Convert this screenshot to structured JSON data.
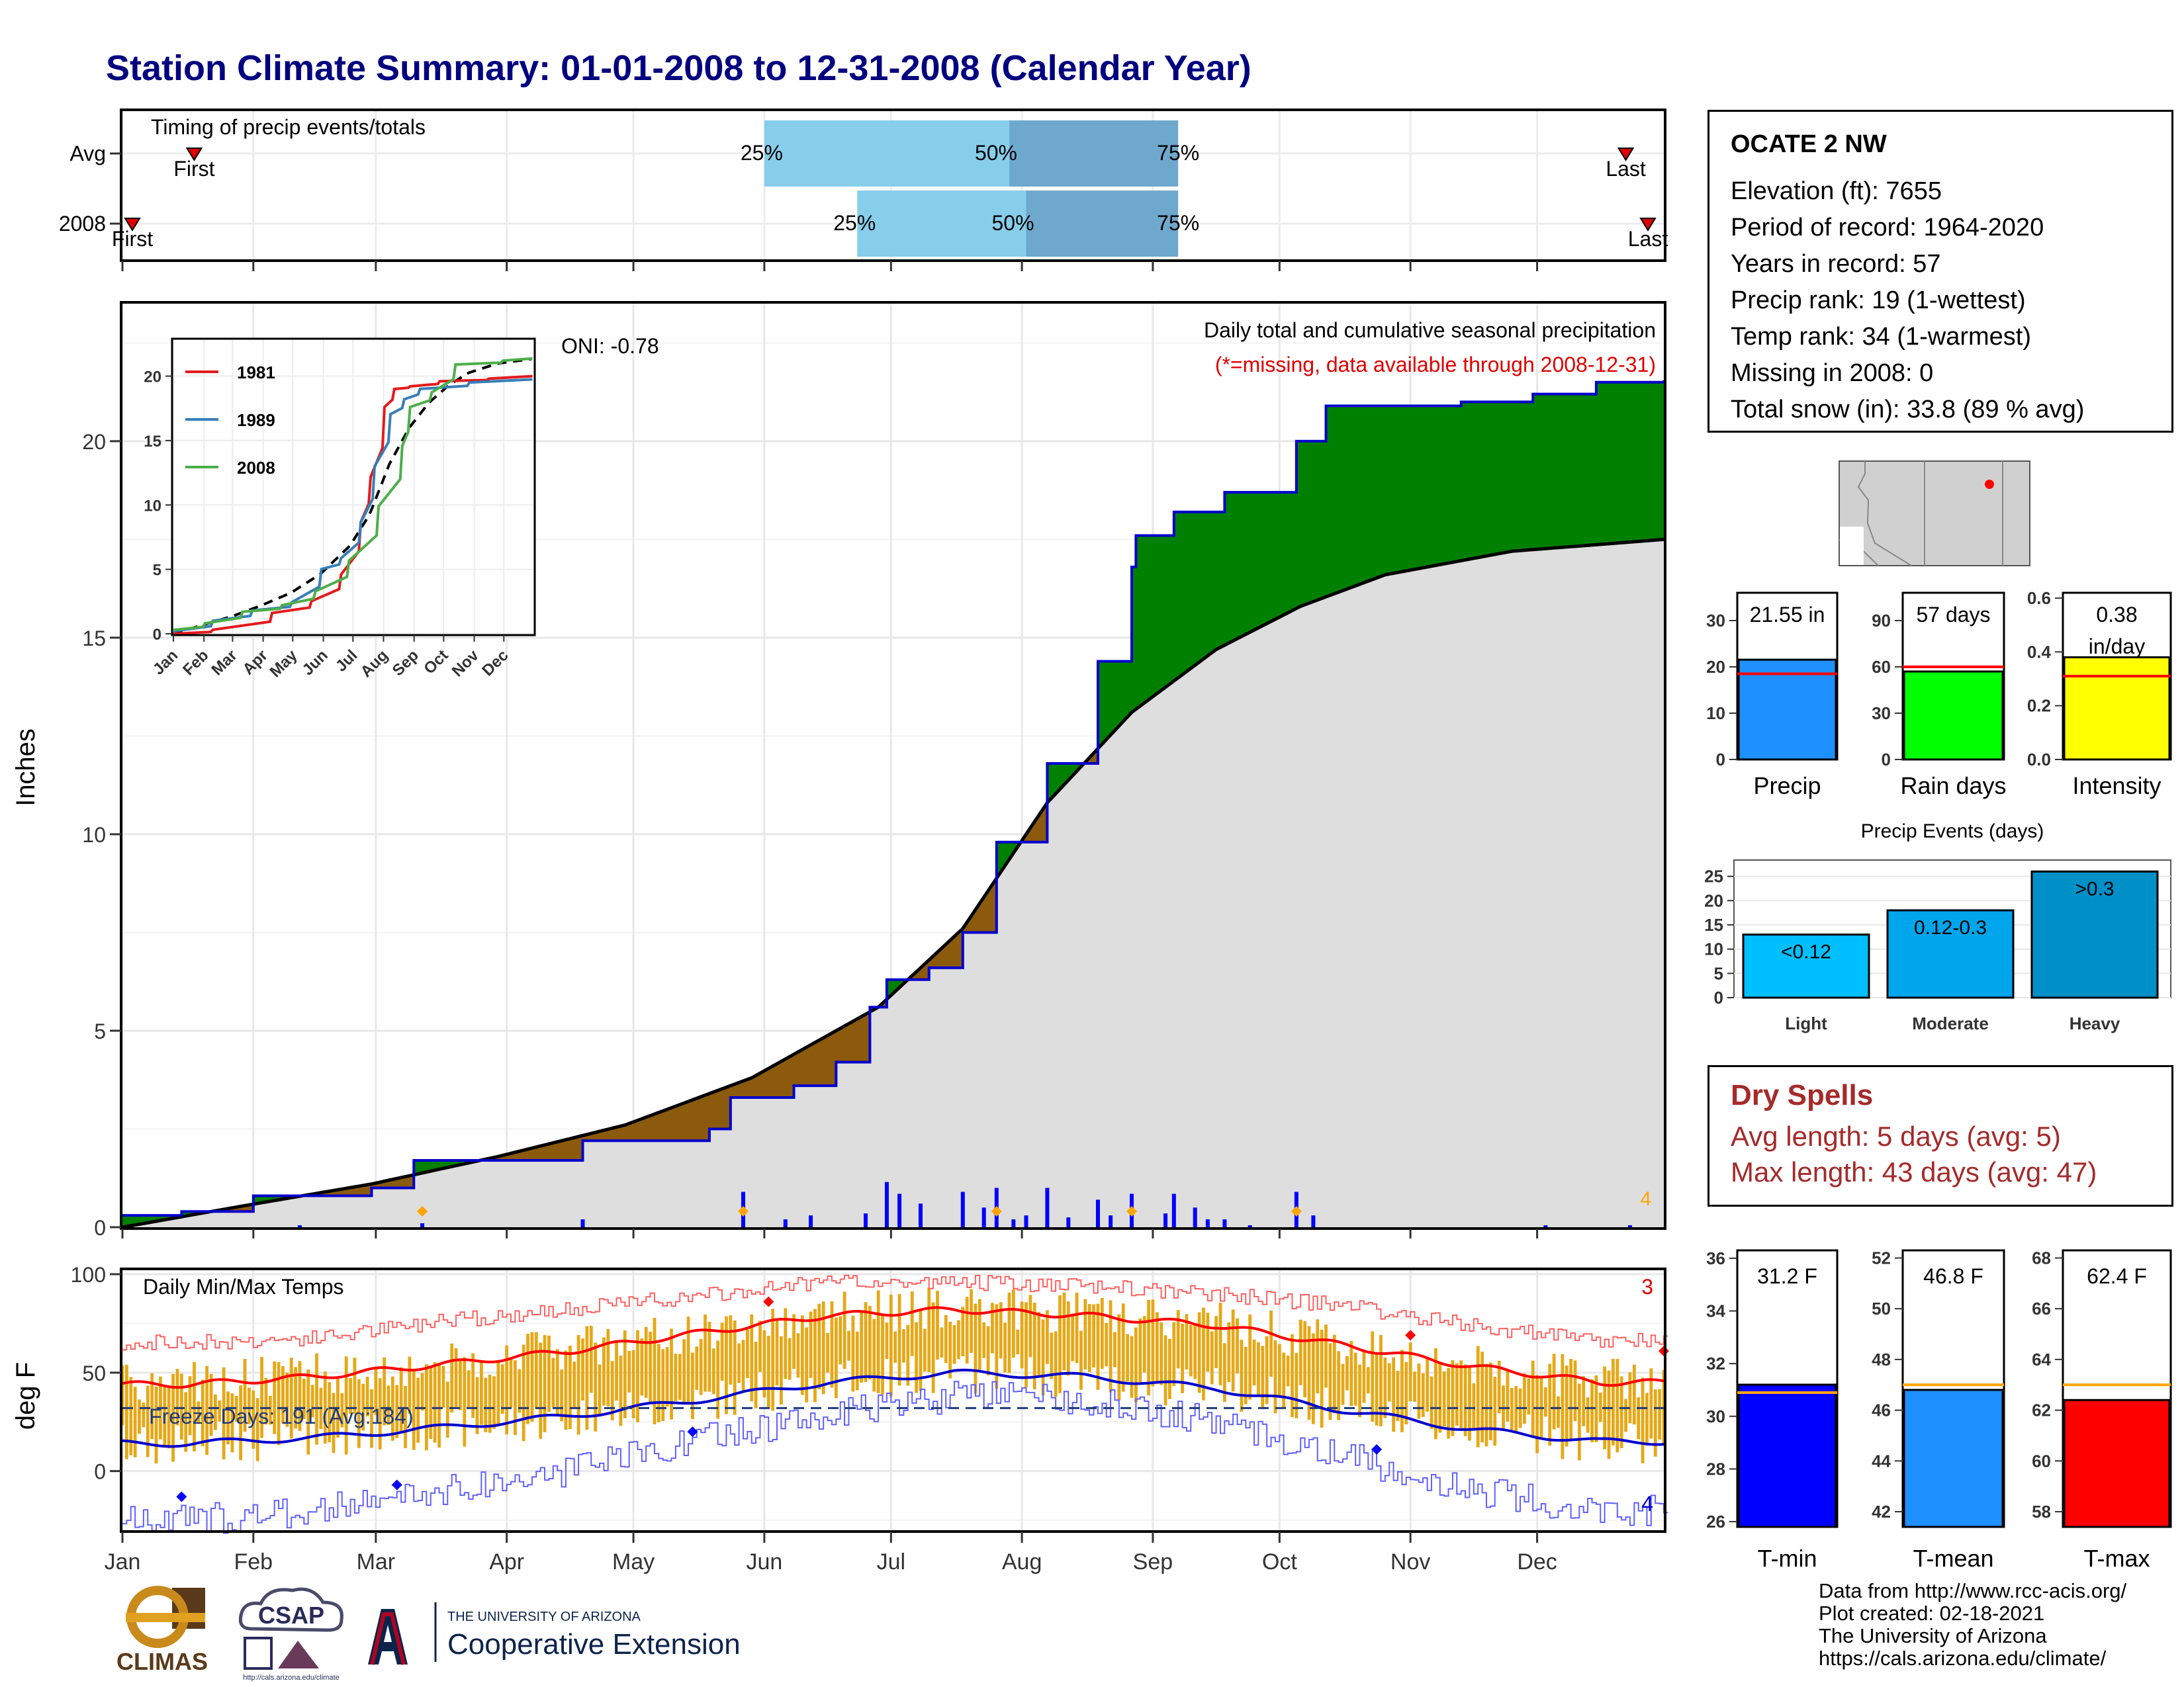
{
  "page": {
    "title": "Station Climate Summary: 01-01-2008 to 12-31-2008 (Calendar Year)"
  },
  "timing": {
    "label": "Timing of precip events/totals",
    "rows": [
      {
        "name": "Avg",
        "first_day": 18,
        "p25_day": 153,
        "p50_day": 211,
        "p75_day": 251,
        "last_day": 357
      },
      {
        "name": "2008",
        "first_day": 3,
        "p25_day": 175,
        "p50_day": 215,
        "p75_day": 251,
        "last_day": 366
      }
    ],
    "first_label": "First",
    "last_label": "Last",
    "pct_labels": [
      "25%",
      "50%",
      "75%"
    ],
    "colors": {
      "light": "#87ceeb",
      "dark": "#6fa8cd",
      "marker": "#e00000"
    }
  },
  "station": {
    "name": "OCATE 2 NW",
    "lines": [
      "Elevation (ft): 7655",
      "Period of record: 1964-2020",
      "Years in record: 57",
      "Precip rank: 19 (1-wettest)",
      "Temp rank: 34 (1-warmest)",
      "Missing in 2008: 0",
      "Total snow (in): 33.8 (89 % avg)"
    ],
    "map_location": "northeast New Mexico"
  },
  "precip_chart": {
    "title": "Daily total and cumulative seasonal precipitation",
    "missing_note": "(*=missing, data available through 2008-12-31)",
    "oni_label": "ONI: -0.78",
    "ylabel": "Inches",
    "yticks": [
      "0",
      "5",
      "10",
      "15",
      "20"
    ],
    "corner_count": "4",
    "colors": {
      "above": "#008000",
      "below": "#8b5a0c",
      "avg_area": "#dedede",
      "obs_line": "#0000cd",
      "bars": "#0000ff",
      "marker": "#ffa500"
    }
  },
  "inset": {
    "yticks": [
      "0",
      "5",
      "10",
      "15",
      "20"
    ],
    "months": [
      "Jan",
      "Feb",
      "Mar",
      "Apr",
      "May",
      "Jun",
      "Jul",
      "Aug",
      "Sep",
      "Oct",
      "Nov",
      "Dec"
    ],
    "legend": [
      {
        "name": "1981",
        "color": "#e41a1c"
      },
      {
        "name": "1989",
        "color": "#377eb8"
      },
      {
        "name": "2008",
        "color": "#4daf4a"
      }
    ]
  },
  "temp_chart": {
    "title": "Daily Min/Max Temps",
    "ylabel": "deg F",
    "yticks": [
      "0",
      "50",
      "100"
    ],
    "freeze_label": "Freeze Days: 191 (Avg:184)",
    "count_max": "3",
    "count_min": "4",
    "colors": {
      "bars": "#e6a817",
      "max_line": "#ff0000",
      "min_line": "#0000cd"
    }
  },
  "months": [
    "Jan",
    "Feb",
    "Mar",
    "Apr",
    "May",
    "Jun",
    "Jul",
    "Aug",
    "Sep",
    "Oct",
    "Nov",
    "Dec"
  ],
  "summary_bars": [
    {
      "label": "Precip",
      "value_label": "21.55 in",
      "value": 21.55,
      "avg": 18.5,
      "ymax": 36,
      "ticks": [
        0,
        10,
        20,
        30
      ],
      "color": "#1e90ff"
    },
    {
      "label": "Rain days",
      "value_label": "57 days",
      "value": 57,
      "avg": 60,
      "ymax": 108,
      "ticks": [
        0,
        30,
        60,
        90
      ],
      "color": "#00ff00"
    },
    {
      "label": "Intensity",
      "value_label": "0.38 in/day",
      "value": 0.38,
      "avg": 0.31,
      "ymax": 0.62,
      "ticks": [
        0.0,
        0.2,
        0.4,
        0.6
      ],
      "color": "#ffff00"
    }
  ],
  "precip_events": {
    "title": "Precip Events (days)",
    "categories": [
      "Light",
      "Moderate",
      "Heavy"
    ],
    "bar_labels": [
      "<0.12",
      "0.12-0.3",
      ">0.3"
    ],
    "values": [
      13,
      18,
      26
    ],
    "ylim": [
      0,
      27
    ],
    "yticks": [
      0,
      5,
      10,
      15,
      20,
      25
    ],
    "colors": [
      "#00bfff",
      "#00a6ec",
      "#0090c8"
    ]
  },
  "dry_spells": {
    "title": "Dry Spells",
    "avg_line": "Avg length: 5 days (avg: 5)",
    "max_line": "Max length: 43 days (avg: 47)"
  },
  "temp_summary": [
    {
      "label": "T-min",
      "value_label": "31.2 F",
      "value": 31.2,
      "avg": 30.9,
      "ymin": 25.8,
      "ymax": 36.3,
      "ticks": [
        26,
        28,
        30,
        32,
        34,
        36
      ],
      "color": "#0000ff"
    },
    {
      "label": "T-mean",
      "value_label": "46.8 F",
      "value": 46.8,
      "avg": 47.0,
      "ymin": 41.4,
      "ymax": 52.3,
      "ticks": [
        42,
        44,
        46,
        48,
        50,
        52
      ],
      "color": "#1e90ff"
    },
    {
      "label": "T-max",
      "value_label": "62.4 F",
      "value": 62.4,
      "avg": 63.0,
      "ymin": 57.4,
      "ymax": 68.3,
      "ticks": [
        58,
        60,
        62,
        64,
        66,
        68
      ],
      "color": "#ff0000"
    }
  ],
  "credits": [
    "Data from http://www.rcc-acis.org/",
    "Plot created: 02-18-2021",
    "The University of Arizona",
    "https://cals.arizona.edu/climate/"
  ],
  "logos": {
    "climas": "CLIMAS",
    "csap": "CSAP",
    "csap_url": "http://cals.arizona.edu/climate",
    "ua_small": "THE UNIVERSITY OF ARIZONA",
    "ua_big": "Cooperative Extension"
  },
  "chart_data": [
    {
      "type": "area",
      "title": "Daily total and cumulative seasonal precipitation",
      "ylabel": "Inches",
      "ylim": [
        0,
        23.5
      ],
      "x_unit": "day of year 2008",
      "series": [
        {
          "name": "2008",
          "x": [
            1,
            15,
            32,
            60,
            70,
            100,
            110,
            130,
            140,
            145,
            160,
            170,
            178,
            182,
            192,
            200,
            208,
            220,
            232,
            240,
            241,
            250,
            262,
            279,
            286,
            300,
            318,
            335,
            350,
            366
          ],
          "values": [
            0.3,
            0.4,
            0.8,
            1.0,
            1.7,
            1.7,
            2.2,
            2.2,
            2.5,
            3.3,
            3.6,
            4.2,
            5.6,
            6.3,
            6.6,
            7.5,
            9.8,
            11.8,
            14.4,
            16.8,
            17.6,
            18.2,
            18.7,
            20.0,
            20.9,
            20.9,
            21.0,
            21.2,
            21.5,
            21.55
          ]
        },
        {
          "name": "Avg",
          "x": [
            1,
            30,
            60,
            90,
            120,
            150,
            180,
            200,
            220,
            240,
            260,
            280,
            300,
            330,
            366
          ],
          "values": [
            0,
            0.55,
            1.1,
            1.8,
            2.6,
            3.8,
            5.6,
            7.6,
            10.8,
            13.1,
            14.7,
            15.8,
            16.6,
            17.2,
            17.5
          ]
        }
      ],
      "daily": [
        {
          "day": 43,
          "value": 0.05
        },
        {
          "day": 72,
          "value": 0.1
        },
        {
          "day": 110,
          "value": 0.2
        },
        {
          "day": 148,
          "value": 0.9
        },
        {
          "day": 158,
          "value": 0.2
        },
        {
          "day": 164,
          "value": 0.3
        },
        {
          "day": 177,
          "value": 0.35
        },
        {
          "day": 182,
          "value": 1.15
        },
        {
          "day": 185,
          "value": 0.85
        },
        {
          "day": 190,
          "value": 0.6
        },
        {
          "day": 200,
          "value": 0.9
        },
        {
          "day": 205,
          "value": 0.5
        },
        {
          "day": 208,
          "value": 1.0
        },
        {
          "day": 212,
          "value": 0.2
        },
        {
          "day": 215,
          "value": 0.3
        },
        {
          "day": 220,
          "value": 1.0
        },
        {
          "day": 225,
          "value": 0.25
        },
        {
          "day": 232,
          "value": 0.7
        },
        {
          "day": 235,
          "value": 0.3
        },
        {
          "day": 240,
          "value": 0.85
        },
        {
          "day": 248,
          "value": 0.35
        },
        {
          "day": 250,
          "value": 0.85
        },
        {
          "day": 255,
          "value": 0.5
        },
        {
          "day": 258,
          "value": 0.2
        },
        {
          "day": 262,
          "value": 0.2
        },
        {
          "day": 268,
          "value": 0.05
        },
        {
          "day": 279,
          "value": 0.9
        },
        {
          "day": 283,
          "value": 0.3
        },
        {
          "day": 338,
          "value": 0.05
        },
        {
          "day": 358,
          "value": 0.05
        }
      ]
    },
    {
      "type": "line",
      "title": "Daily Min/Max Temps",
      "ylabel": "deg F",
      "ylim": [
        -30,
        102
      ],
      "x": [
        "Jan",
        "Feb",
        "Mar",
        "Apr",
        "May",
        "Jun",
        "Jul",
        "Aug",
        "Sep",
        "Oct",
        "Nov",
        "Dec"
      ],
      "series": [
        {
          "name": "avg max",
          "values": [
            44,
            48,
            54,
            61,
            70,
            79,
            82,
            79,
            74,
            64,
            53,
            45
          ]
        },
        {
          "name": "avg min",
          "values": [
            14,
            17,
            22,
            28,
            36,
            45,
            50,
            48,
            42,
            31,
            21,
            15
          ]
        },
        {
          "name": "record max",
          "values": [
            65,
            68,
            76,
            82,
            89,
            96,
            96,
            94,
            90,
            84,
            74,
            66
          ]
        },
        {
          "name": "record min",
          "values": [
            -25,
            -20,
            -10,
            0,
            16,
            28,
            38,
            36,
            25,
            8,
            -10,
            -20
          ]
        }
      ],
      "freeze_line": 32
    },
    {
      "type": "bar",
      "categories": [
        "Precip",
        "Rain days",
        "Intensity"
      ],
      "values": [
        21.55,
        57,
        0.38
      ],
      "averages": [
        18.5,
        60,
        0.31
      ]
    },
    {
      "type": "bar",
      "title": "Precip Events (days)",
      "categories": [
        "Light",
        "Moderate",
        "Heavy"
      ],
      "values": [
        13,
        18,
        26
      ],
      "ylim": [
        0,
        27
      ]
    },
    {
      "type": "bar",
      "categories": [
        "T-min",
        "T-mean",
        "T-max"
      ],
      "values": [
        31.2,
        46.8,
        62.4
      ],
      "averages": [
        30.9,
        47.0,
        63.0
      ]
    }
  ]
}
